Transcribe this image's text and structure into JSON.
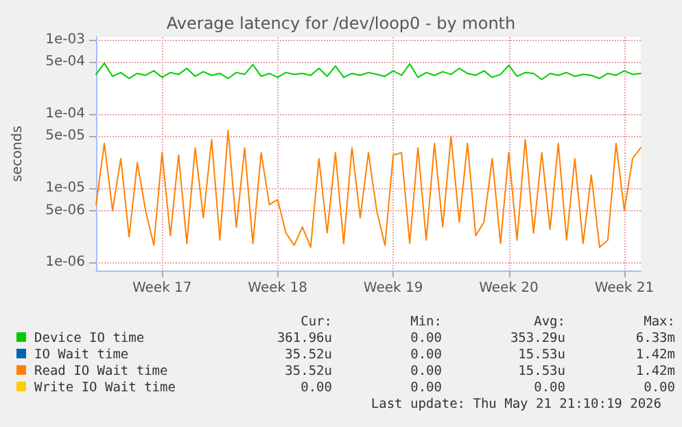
{
  "chart_data": {
    "type": "line",
    "title": "Average latency for /dev/loop0 - by month",
    "ylabel": "seconds",
    "categories": [
      null,
      null,
      null,
      null,
      null,
      null,
      null,
      null,
      "Week 17",
      null,
      null,
      null,
      null,
      null,
      null,
      null,
      null,
      null,
      null,
      null,
      null,
      null,
      "Week 18",
      null,
      null,
      null,
      null,
      null,
      null,
      null,
      null,
      null,
      null,
      null,
      null,
      null,
      "Week 19",
      null,
      null,
      null,
      null,
      null,
      null,
      null,
      null,
      null,
      null,
      null,
      null,
      null,
      "Week 20",
      null,
      null,
      null,
      null,
      null,
      null,
      null,
      null,
      null,
      null,
      null,
      null,
      null,
      "Week 21",
      null,
      null
    ],
    "series": [
      {
        "name": "Device IO time",
        "color": "#00cc00",
        "values": [
          0.00034,
          0.00048,
          0.00032,
          0.00036,
          0.0003,
          0.00035,
          0.00033,
          0.00038,
          0.00031,
          0.00036,
          0.00034,
          0.00041,
          0.00032,
          0.00037,
          0.00033,
          0.00035,
          0.0003,
          0.00036,
          0.00034,
          0.00046,
          0.00032,
          0.00035,
          0.00031,
          0.00036,
          0.00034,
          0.00035,
          0.00033,
          0.00041,
          0.00032,
          0.00044,
          0.00031,
          0.00035,
          0.00033,
          0.00036,
          0.00034,
          0.00032,
          0.00038,
          0.00033,
          0.00047,
          0.00031,
          0.00036,
          0.00033,
          0.00037,
          0.00034,
          0.00041,
          0.00035,
          0.00033,
          0.00038,
          0.00031,
          0.00034,
          0.00045,
          0.00032,
          0.00036,
          0.00035,
          0.00029,
          0.00035,
          0.00033,
          0.00036,
          0.00032,
          0.00034,
          0.00033,
          0.0003,
          0.00035,
          0.00033,
          0.00038,
          0.00034,
          0.00035
        ]
      },
      {
        "name": "IO Wait time",
        "color": "#0066b3",
        "values": [
          null,
          null,
          null,
          null,
          null,
          null,
          null,
          null,
          null,
          null,
          null,
          null,
          null,
          null,
          null,
          null,
          null,
          null,
          null,
          null,
          null,
          null,
          null,
          null,
          null,
          null,
          null,
          null,
          null,
          null,
          null,
          null,
          null,
          null,
          null,
          null,
          null,
          null,
          null,
          null,
          null,
          null,
          null,
          null,
          null,
          null,
          null,
          null,
          null,
          null,
          null,
          null,
          null,
          null,
          null,
          null,
          null,
          null,
          null,
          null,
          null,
          null,
          null,
          null,
          null,
          null,
          null
        ]
      },
      {
        "name": "Read IO Wait time",
        "color": "#ff8000",
        "values": [
          6e-06,
          4e-05,
          5e-06,
          2.5e-05,
          2.2e-06,
          2.2e-05,
          5e-06,
          1.7e-06,
          3e-05,
          2.3e-06,
          2.8e-05,
          1.8e-06,
          3.5e-05,
          4e-06,
          4.5e-05,
          2e-06,
          6e-05,
          3e-06,
          3.5e-05,
          1.8e-06,
          3e-05,
          6e-06,
          7e-06,
          2.5e-06,
          1.7e-06,
          3e-06,
          1.6e-06,
          2.5e-05,
          2.5e-06,
          3e-05,
          1.8e-06,
          3.5e-05,
          4e-06,
          3e-05,
          5e-06,
          1.7e-06,
          2.8e-05,
          3e-05,
          1.8e-06,
          3.5e-05,
          2e-06,
          4e-05,
          3e-06,
          5e-05,
          3.5e-06,
          4e-05,
          2.3e-06,
          3.5e-06,
          2.5e-05,
          1.8e-06,
          3e-05,
          2e-06,
          4.5e-05,
          2.5e-06,
          3e-05,
          2.8e-06,
          4e-05,
          2e-06,
          2.5e-05,
          1.8e-06,
          1.5e-05,
          1.6e-06,
          2e-06,
          4e-05,
          5e-06,
          2.5e-05,
          3.5e-05
        ]
      },
      {
        "name": "Write IO Wait time",
        "color": "#ffcc00",
        "values": [
          null,
          null,
          null,
          null,
          null,
          null,
          null,
          null,
          null,
          null,
          null,
          null,
          null,
          null,
          null,
          null,
          null,
          null,
          null,
          null,
          null,
          null,
          null,
          null,
          null,
          null,
          null,
          null,
          null,
          null,
          null,
          null,
          null,
          null,
          null,
          null,
          null,
          null,
          null,
          null,
          null,
          null,
          null,
          null,
          null,
          null,
          null,
          null,
          null,
          null,
          null,
          null,
          null,
          null,
          null,
          null,
          null,
          null,
          null,
          null,
          null,
          null,
          null,
          null,
          null,
          null,
          null
        ]
      }
    ],
    "ylim": [
      7.8e-07,
      0.00108
    ],
    "yticks": [
      {
        "value": 1e-06,
        "label": "1e-06"
      },
      {
        "value": 5e-06,
        "label": "5e-06"
      },
      {
        "value": 1e-05,
        "label": "1e-05"
      },
      {
        "value": 5e-05,
        "label": "5e-05"
      },
      {
        "value": 0.0001,
        "label": "1e-04"
      },
      {
        "value": 0.0005,
        "label": "5e-04"
      },
      {
        "value": 0.001,
        "label": "1e-03"
      }
    ],
    "log": "y",
    "grid": true,
    "legend": "bottom",
    "marker": "none",
    "line_style": "solid",
    "annotations": [
      "Cur:",
      "Min:",
      "Avg:",
      "Max:",
      "361.96u",
      "0.00",
      "353.29u",
      "6.33m",
      "35.52u",
      "0.00",
      "15.53u",
      "1.42m",
      "35.52u",
      "0.00",
      "15.53u",
      "1.42m",
      "0.00",
      "0.00",
      "0.00",
      "0.00",
      "Last update: Thu May 21 21:10:19 2026"
    ]
  }
}
